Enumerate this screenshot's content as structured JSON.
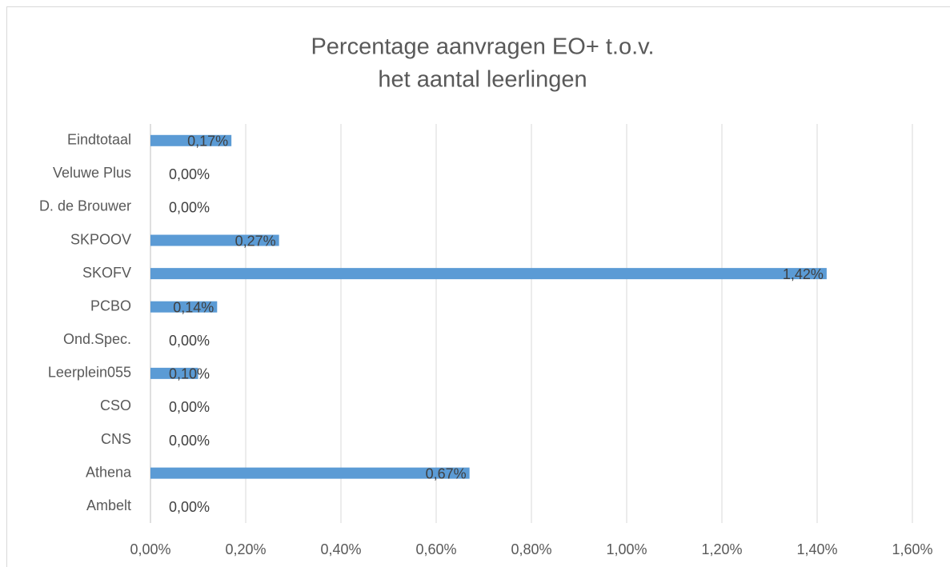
{
  "chart_data": {
    "type": "hbar",
    "title": [
      "Percentage aanvragen EO+ t.o.v.",
      "het aantal leerlingen"
    ],
    "categories": [
      "Eindtotaal",
      "Veluwe Plus",
      "D. de Brouwer",
      "SKPOOV",
      "SKOFV",
      "PCBO",
      "Ond.Spec.",
      "Leerplein055",
      "CSO",
      "CNS",
      "Athena",
      "Ambelt"
    ],
    "values": [
      0.17,
      0,
      0,
      0.27,
      1.42,
      0.14,
      0,
      0.1,
      0,
      0,
      0.67,
      0
    ],
    "value_labels": [
      "0,17%",
      "0,00%",
      "0,00%",
      "0,27%",
      "1,42%",
      "0,14%",
      "0,00%",
      "0,10%",
      "0,00%",
      "0,00%",
      "0,67%",
      "0,00%"
    ],
    "color": "#5b9bd5",
    "xlim": [
      0,
      1.6
    ],
    "xticks": [
      {
        "value": 0,
        "label": "0,00%"
      },
      {
        "value": 0.2,
        "label": "0,20%"
      },
      {
        "value": 0.4,
        "label": "0,40%"
      },
      {
        "value": 0.6,
        "label": "0,60%"
      },
      {
        "value": 0.8,
        "label": "0,80%"
      },
      {
        "value": 1.0,
        "label": "1,00%"
      },
      {
        "value": 1.2,
        "label": "1,20%"
      },
      {
        "value": 1.4,
        "label": "1,40%"
      },
      {
        "value": 1.6,
        "label": "1,60%"
      }
    ],
    "grid": true
  }
}
